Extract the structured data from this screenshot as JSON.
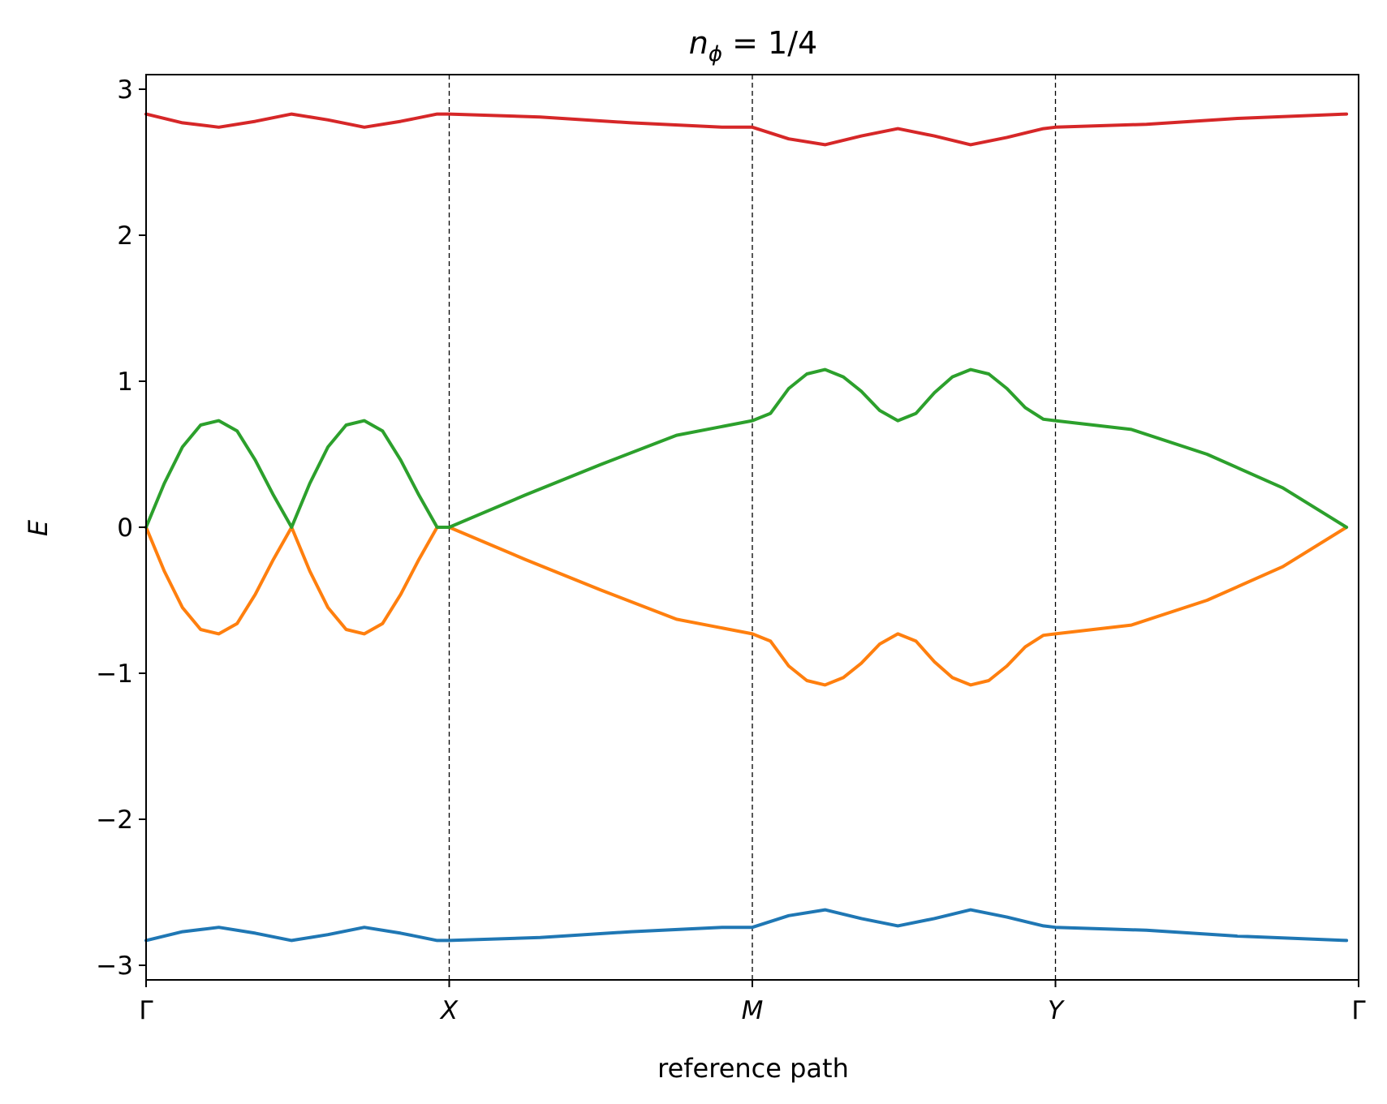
{
  "chart_data": {
    "type": "line",
    "title": {
      "main": "n",
      "sub": "ϕ",
      "rest": " = 1/4"
    },
    "xlabel": "reference path",
    "ylabel": "E",
    "ylim": [
      -3.1,
      3.1
    ],
    "yticks": [
      -3,
      -2,
      -1,
      0,
      1,
      2,
      3
    ],
    "ytick_labels": [
      "−3",
      "−2",
      "−1",
      "0",
      "1",
      "2",
      "3"
    ],
    "xlim": [
      0,
      4
    ],
    "xticks": [
      0,
      1,
      2,
      3,
      4
    ],
    "xtick_labels": [
      "Γ",
      "X",
      "M",
      "Y",
      "Γ"
    ],
    "vlines": [
      1,
      2,
      3
    ],
    "grid": false,
    "series": [
      {
        "color": "#1f77b4",
        "points": [
          [
            0,
            -2.83
          ],
          [
            0.12,
            -2.77
          ],
          [
            0.24,
            -2.74
          ],
          [
            0.36,
            -2.78
          ],
          [
            0.48,
            -2.83
          ],
          [
            0.6,
            -2.79
          ],
          [
            0.72,
            -2.74
          ],
          [
            0.84,
            -2.78
          ],
          [
            0.96,
            -2.83
          ],
          [
            1.0,
            -2.83
          ],
          [
            1.3,
            -2.81
          ],
          [
            1.6,
            -2.77
          ],
          [
            1.9,
            -2.74
          ],
          [
            2.0,
            -2.74
          ],
          [
            2.12,
            -2.66
          ],
          [
            2.24,
            -2.62
          ],
          [
            2.36,
            -2.68
          ],
          [
            2.48,
            -2.73
          ],
          [
            2.6,
            -2.68
          ],
          [
            2.72,
            -2.62
          ],
          [
            2.84,
            -2.67
          ],
          [
            2.96,
            -2.73
          ],
          [
            3.0,
            -2.74
          ],
          [
            3.3,
            -2.76
          ],
          [
            3.6,
            -2.8
          ],
          [
            3.96,
            -2.83
          ]
        ]
      },
      {
        "color": "#ff7f0e",
        "points": [
          [
            0,
            0
          ],
          [
            0.06,
            -0.3
          ],
          [
            0.12,
            -0.55
          ],
          [
            0.18,
            -0.7
          ],
          [
            0.24,
            -0.73
          ],
          [
            0.3,
            -0.66
          ],
          [
            0.36,
            -0.46
          ],
          [
            0.42,
            -0.22
          ],
          [
            0.48,
            0
          ],
          [
            0.54,
            -0.3
          ],
          [
            0.6,
            -0.55
          ],
          [
            0.66,
            -0.7
          ],
          [
            0.72,
            -0.73
          ],
          [
            0.78,
            -0.66
          ],
          [
            0.84,
            -0.46
          ],
          [
            0.9,
            -0.22
          ],
          [
            0.96,
            0
          ],
          [
            1.0,
            0
          ],
          [
            1.25,
            -0.22
          ],
          [
            1.5,
            -0.43
          ],
          [
            1.75,
            -0.63
          ],
          [
            2.0,
            -0.73
          ],
          [
            2.06,
            -0.78
          ],
          [
            2.12,
            -0.95
          ],
          [
            2.18,
            -1.05
          ],
          [
            2.24,
            -1.08
          ],
          [
            2.3,
            -1.03
          ],
          [
            2.36,
            -0.93
          ],
          [
            2.42,
            -0.8
          ],
          [
            2.48,
            -0.73
          ],
          [
            2.54,
            -0.78
          ],
          [
            2.6,
            -0.92
          ],
          [
            2.66,
            -1.03
          ],
          [
            2.72,
            -1.08
          ],
          [
            2.78,
            -1.05
          ],
          [
            2.84,
            -0.95
          ],
          [
            2.9,
            -0.82
          ],
          [
            2.96,
            -0.74
          ],
          [
            3.0,
            -0.73
          ],
          [
            3.25,
            -0.67
          ],
          [
            3.5,
            -0.5
          ],
          [
            3.75,
            -0.27
          ],
          [
            3.96,
            0
          ]
        ]
      },
      {
        "color": "#2ca02c",
        "points": [
          [
            0,
            0
          ],
          [
            0.06,
            0.3
          ],
          [
            0.12,
            0.55
          ],
          [
            0.18,
            0.7
          ],
          [
            0.24,
            0.73
          ],
          [
            0.3,
            0.66
          ],
          [
            0.36,
            0.46
          ],
          [
            0.42,
            0.22
          ],
          [
            0.48,
            0
          ],
          [
            0.54,
            0.3
          ],
          [
            0.6,
            0.55
          ],
          [
            0.66,
            0.7
          ],
          [
            0.72,
            0.73
          ],
          [
            0.78,
            0.66
          ],
          [
            0.84,
            0.46
          ],
          [
            0.9,
            0.22
          ],
          [
            0.96,
            0
          ],
          [
            1.0,
            0
          ],
          [
            1.25,
            0.22
          ],
          [
            1.5,
            0.43
          ],
          [
            1.75,
            0.63
          ],
          [
            2.0,
            0.73
          ],
          [
            2.06,
            0.78
          ],
          [
            2.12,
            0.95
          ],
          [
            2.18,
            1.05
          ],
          [
            2.24,
            1.08
          ],
          [
            2.3,
            1.03
          ],
          [
            2.36,
            0.93
          ],
          [
            2.42,
            0.8
          ],
          [
            2.48,
            0.73
          ],
          [
            2.54,
            0.78
          ],
          [
            2.6,
            0.92
          ],
          [
            2.66,
            1.03
          ],
          [
            2.72,
            1.08
          ],
          [
            2.78,
            1.05
          ],
          [
            2.84,
            0.95
          ],
          [
            2.9,
            0.82
          ],
          [
            2.96,
            0.74
          ],
          [
            3.0,
            0.73
          ],
          [
            3.25,
            0.67
          ],
          [
            3.5,
            0.5
          ],
          [
            3.75,
            0.27
          ],
          [
            3.96,
            0
          ]
        ]
      },
      {
        "color": "#d62728",
        "points": [
          [
            0,
            2.83
          ],
          [
            0.12,
            2.77
          ],
          [
            0.24,
            2.74
          ],
          [
            0.36,
            2.78
          ],
          [
            0.48,
            2.83
          ],
          [
            0.6,
            2.79
          ],
          [
            0.72,
            2.74
          ],
          [
            0.84,
            2.78
          ],
          [
            0.96,
            2.83
          ],
          [
            1.0,
            2.83
          ],
          [
            1.3,
            2.81
          ],
          [
            1.6,
            2.77
          ],
          [
            1.9,
            2.74
          ],
          [
            2.0,
            2.74
          ],
          [
            2.12,
            2.66
          ],
          [
            2.24,
            2.62
          ],
          [
            2.36,
            2.68
          ],
          [
            2.48,
            2.73
          ],
          [
            2.6,
            2.68
          ],
          [
            2.72,
            2.62
          ],
          [
            2.84,
            2.67
          ],
          [
            2.96,
            2.73
          ],
          [
            3.0,
            2.74
          ],
          [
            3.3,
            2.76
          ],
          [
            3.6,
            2.8
          ],
          [
            3.96,
            2.83
          ]
        ]
      }
    ]
  }
}
